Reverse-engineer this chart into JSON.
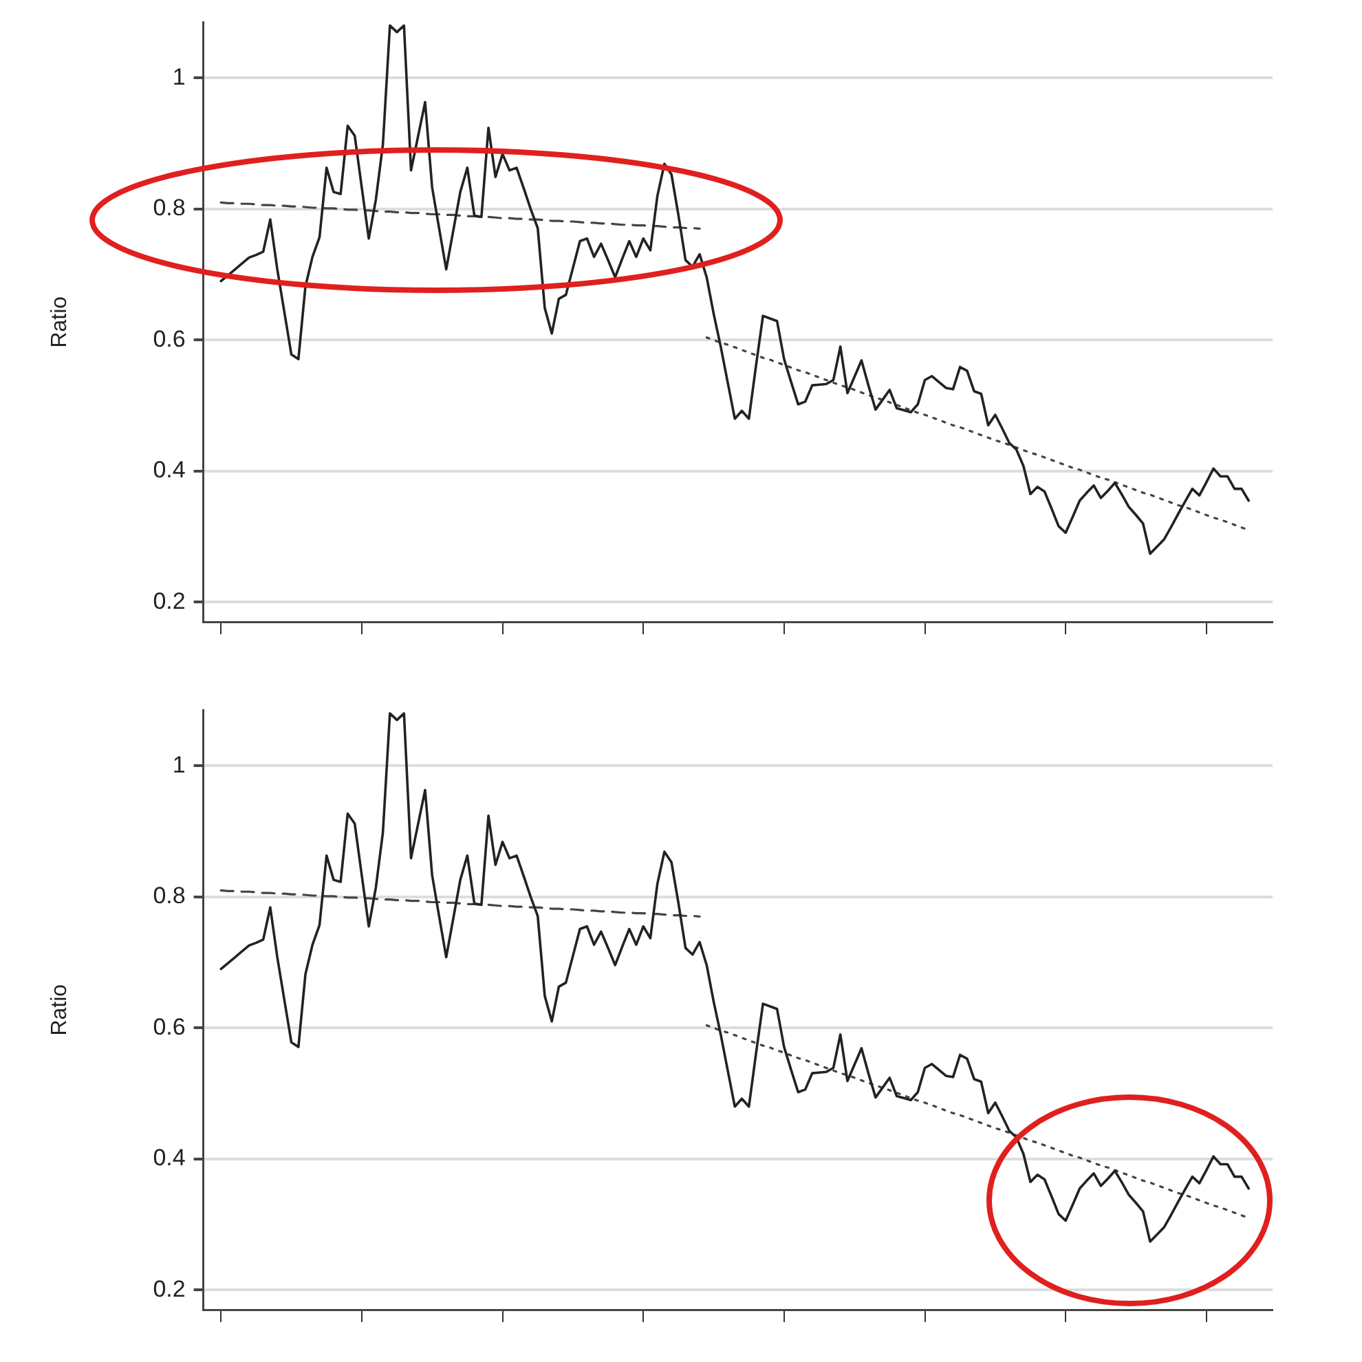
{
  "chart_data": [
    {
      "type": "line",
      "ylabel": "Ratio",
      "ylim": [
        0.17,
        1.085
      ],
      "yticks": [
        0.2,
        0.4,
        0.6,
        0.8,
        1
      ],
      "grid": "y",
      "legend": false,
      "marker": "none",
      "categories": [
        null,
        null,
        null,
        null,
        null,
        null,
        null,
        null,
        null,
        null,
        null,
        null,
        null,
        null,
        null,
        null,
        null,
        null,
        null,
        null,
        null,
        null,
        null,
        null,
        null,
        null,
        null,
        null,
        null,
        null,
        null,
        null,
        null,
        null,
        null,
        null,
        null,
        null,
        null,
        null,
        null,
        null,
        null,
        null,
        null,
        null,
        null,
        null,
        null,
        null,
        null,
        null,
        null,
        null,
        null,
        null,
        null,
        null,
        null,
        null,
        null,
        null,
        null,
        null,
        null,
        null,
        null,
        null,
        null,
        null,
        null,
        null,
        null,
        null,
        null,
        null,
        null,
        null,
        null,
        null,
        null,
        null,
        null,
        null,
        null,
        null,
        null,
        null,
        null,
        null,
        null,
        null,
        null,
        null,
        null,
        null,
        null,
        null,
        null,
        null,
        null,
        null,
        null,
        null,
        null,
        null,
        null,
        null,
        null,
        null,
        null,
        null,
        null,
        null,
        null,
        null,
        null,
        null,
        null,
        null,
        null,
        null,
        null,
        null,
        null,
        null,
        null,
        null,
        null,
        null,
        null,
        null,
        null,
        null,
        null,
        null,
        null,
        null,
        null,
        null,
        null,
        null,
        null,
        null,
        null,
        null,
        null
      ],
      "series": [
        {
          "color": "#222222",
          "line_style": "solid",
          "values": [
            0.69,
            0.699,
            0.708,
            0.717,
            0.726,
            0.73,
            0.735,
            0.784,
            0.708,
            0.643,
            0.578,
            0.571,
            0.682,
            0.727,
            0.757,
            0.863,
            0.826,
            0.823,
            0.927,
            0.912,
            0.833,
            0.755,
            0.814,
            0.898,
            1.08,
            1.07,
            1.08,
            0.859,
            0.911,
            0.963,
            0.833,
            0.77,
            0.708,
            0.767,
            0.826,
            0.863,
            0.79,
            0.788,
            0.924,
            0.849,
            0.884,
            0.859,
            0.863,
            0.832,
            0.8,
            0.771,
            0.649,
            0.61,
            0.663,
            0.669,
            0.71,
            0.751,
            0.755,
            0.727,
            0.747,
            0.722,
            0.696,
            0.724,
            0.751,
            0.727,
            0.755,
            0.737,
            0.82,
            0.869,
            0.853,
            0.79,
            0.722,
            0.712,
            0.731,
            0.696,
            0.64,
            0.59,
            0.535,
            0.48,
            0.492,
            0.48,
            0.56,
            0.637,
            0.633,
            0.629,
            0.571,
            0.536,
            0.502,
            0.506,
            0.531,
            0.532,
            0.533,
            0.539,
            0.59,
            0.519,
            0.544,
            0.569,
            0.53,
            0.494,
            0.509,
            0.524,
            0.496,
            0.493,
            0.49,
            0.502,
            0.539,
            0.545,
            0.536,
            0.527,
            0.525,
            0.559,
            0.553,
            0.522,
            0.518,
            0.47,
            0.486,
            0.465,
            0.443,
            0.433,
            0.408,
            0.365,
            0.376,
            0.369,
            0.343,
            0.316,
            0.306,
            0.33,
            0.355,
            0.367,
            0.378,
            0.359,
            0.37,
            0.382,
            0.364,
            0.345,
            0.333,
            0.32,
            0.274,
            0.285,
            0.296,
            0.315,
            0.335,
            0.354,
            0.373,
            0.363,
            0.383,
            0.404,
            0.392,
            0.392,
            0.373,
            0.373,
            0.355
          ]
        },
        {
          "color": "#444444",
          "line_style": "dashed",
          "values": [
            0.81,
            0.809,
            0.809,
            0.808,
            0.808,
            0.807,
            0.806,
            0.806,
            0.805,
            0.805,
            0.804,
            0.804,
            0.803,
            0.802,
            0.802,
            0.801,
            0.801,
            0.8,
            0.799,
            0.799,
            0.798,
            0.798,
            0.797,
            0.796,
            0.796,
            0.795,
            0.795,
            0.794,
            0.794,
            0.793,
            0.792,
            0.792,
            0.791,
            0.791,
            0.79,
            0.789,
            0.789,
            0.788,
            0.788,
            0.787,
            0.786,
            0.786,
            0.785,
            0.785,
            0.784,
            0.784,
            0.783,
            0.782,
            0.782,
            0.781,
            0.781,
            0.78,
            0.779,
            0.779,
            0.778,
            0.778,
            0.777,
            0.776,
            0.776,
            0.775,
            0.775,
            0.774,
            0.774,
            0.773,
            0.772,
            0.772,
            0.771,
            0.771,
            0.77,
            null,
            null,
            null,
            null,
            null,
            null,
            null,
            null,
            null,
            null,
            null,
            null,
            null,
            null,
            null,
            null,
            null,
            null,
            null,
            null,
            null,
            null,
            null,
            null,
            null,
            null,
            null,
            null,
            null,
            null,
            null,
            null,
            null,
            null,
            null,
            null,
            null,
            null,
            null,
            null,
            null,
            null,
            null,
            null,
            null,
            null,
            null,
            null,
            null,
            null,
            null,
            null,
            null,
            null,
            null,
            null,
            null,
            null,
            null,
            null,
            null,
            null,
            null,
            null,
            null,
            null,
            null,
            null,
            null,
            null,
            null,
            null,
            null,
            null,
            null,
            null,
            null,
            null
          ]
        },
        {
          "color": "#444444",
          "line_style": "dotted",
          "values": [
            null,
            null,
            null,
            null,
            null,
            null,
            null,
            null,
            null,
            null,
            null,
            null,
            null,
            null,
            null,
            null,
            null,
            null,
            null,
            null,
            null,
            null,
            null,
            null,
            null,
            null,
            null,
            null,
            null,
            null,
            null,
            null,
            null,
            null,
            null,
            null,
            null,
            null,
            null,
            null,
            null,
            null,
            null,
            null,
            null,
            null,
            null,
            null,
            null,
            null,
            null,
            null,
            null,
            null,
            null,
            null,
            null,
            null,
            null,
            null,
            null,
            null,
            null,
            null,
            null,
            null,
            null,
            null,
            null,
            0.604,
            0.6,
            0.596,
            0.593,
            0.589,
            0.585,
            0.581,
            0.577,
            0.573,
            0.57,
            0.566,
            0.562,
            0.558,
            0.554,
            0.551,
            0.547,
            0.543,
            0.539,
            0.535,
            0.531,
            0.528,
            0.524,
            0.52,
            0.516,
            0.512,
            0.509,
            0.505,
            0.501,
            0.497,
            0.493,
            0.489,
            0.486,
            0.482,
            0.478,
            0.474,
            0.47,
            0.467,
            0.463,
            0.459,
            0.455,
            0.451,
            0.447,
            0.444,
            0.44,
            0.436,
            0.432,
            0.428,
            0.425,
            0.421,
            0.417,
            0.413,
            0.409,
            0.405,
            0.402,
            0.398,
            0.394,
            0.39,
            0.387,
            0.383,
            0.379,
            0.375,
            0.371,
            0.367,
            0.364,
            0.36,
            0.356,
            0.352,
            0.348,
            0.345,
            0.341,
            0.337,
            0.333,
            0.329,
            0.326,
            0.322,
            0.318,
            0.314,
            0.31
          ]
        }
      ]
    },
    {
      "type": "line",
      "ylabel": "Ratio",
      "ylim": [
        0.17,
        1.085
      ],
      "yticks": [
        0.2,
        0.4,
        0.6,
        0.8,
        1
      ],
      "grid": "y",
      "legend": false,
      "marker": "none",
      "categories": [
        null,
        null,
        null,
        null,
        null,
        null,
        null,
        null,
        null,
        null,
        null,
        null,
        null,
        null,
        null,
        null,
        null,
        null,
        null,
        null,
        null,
        null,
        null,
        null,
        null,
        null,
        null,
        null,
        null,
        null,
        null,
        null,
        null,
        null,
        null,
        null,
        null,
        null,
        null,
        null,
        null,
        null,
        null,
        null,
        null,
        null,
        null,
        null,
        null,
        null,
        null,
        null,
        null,
        null,
        null,
        null,
        null,
        null,
        null,
        null,
        null,
        null,
        null,
        null,
        null,
        null,
        null,
        null,
        null,
        null,
        null,
        null,
        null,
        null,
        null,
        null,
        null,
        null,
        null,
        null,
        null,
        null,
        null,
        null,
        null,
        null,
        null,
        null,
        null,
        null,
        null,
        null,
        null,
        null,
        null,
        null,
        null,
        null,
        null,
        null,
        null,
        null,
        null,
        null,
        null,
        null,
        null,
        null,
        null,
        null,
        null,
        null,
        null,
        null,
        null,
        null,
        null,
        null,
        null,
        null,
        null,
        null,
        null,
        null,
        null,
        null,
        null,
        null,
        null,
        null,
        null,
        null,
        null,
        null,
        null,
        null,
        null,
        null,
        null,
        null,
        null,
        null,
        null,
        null,
        null,
        null,
        null
      ],
      "series": [
        {
          "color": "#222222",
          "line_style": "solid",
          "values": [
            0.69,
            0.699,
            0.708,
            0.717,
            0.726,
            0.73,
            0.735,
            0.784,
            0.708,
            0.643,
            0.578,
            0.571,
            0.682,
            0.727,
            0.757,
            0.863,
            0.826,
            0.823,
            0.927,
            0.912,
            0.833,
            0.755,
            0.814,
            0.898,
            1.08,
            1.07,
            1.08,
            0.859,
            0.911,
            0.963,
            0.833,
            0.77,
            0.708,
            0.767,
            0.826,
            0.863,
            0.79,
            0.788,
            0.924,
            0.849,
            0.884,
            0.859,
            0.863,
            0.832,
            0.8,
            0.771,
            0.649,
            0.61,
            0.663,
            0.669,
            0.71,
            0.751,
            0.755,
            0.727,
            0.747,
            0.722,
            0.696,
            0.724,
            0.751,
            0.727,
            0.755,
            0.737,
            0.82,
            0.869,
            0.853,
            0.79,
            0.722,
            0.712,
            0.731,
            0.696,
            0.64,
            0.59,
            0.535,
            0.48,
            0.492,
            0.48,
            0.56,
            0.637,
            0.633,
            0.629,
            0.571,
            0.536,
            0.502,
            0.506,
            0.531,
            0.532,
            0.533,
            0.539,
            0.59,
            0.519,
            0.544,
            0.569,
            0.53,
            0.494,
            0.509,
            0.524,
            0.496,
            0.493,
            0.49,
            0.502,
            0.539,
            0.545,
            0.536,
            0.527,
            0.525,
            0.559,
            0.553,
            0.522,
            0.518,
            0.47,
            0.486,
            0.465,
            0.443,
            0.433,
            0.408,
            0.365,
            0.376,
            0.369,
            0.343,
            0.316,
            0.306,
            0.33,
            0.355,
            0.367,
            0.378,
            0.359,
            0.37,
            0.382,
            0.364,
            0.345,
            0.333,
            0.32,
            0.274,
            0.285,
            0.296,
            0.315,
            0.335,
            0.354,
            0.373,
            0.363,
            0.383,
            0.404,
            0.392,
            0.392,
            0.373,
            0.373,
            0.355
          ]
        },
        {
          "color": "#444444",
          "line_style": "dashed",
          "values": [
            0.81,
            0.809,
            0.809,
            0.808,
            0.808,
            0.807,
            0.806,
            0.806,
            0.805,
            0.805,
            0.804,
            0.804,
            0.803,
            0.802,
            0.802,
            0.801,
            0.801,
            0.8,
            0.799,
            0.799,
            0.798,
            0.798,
            0.797,
            0.796,
            0.796,
            0.795,
            0.795,
            0.794,
            0.794,
            0.793,
            0.792,
            0.792,
            0.791,
            0.791,
            0.79,
            0.789,
            0.789,
            0.788,
            0.788,
            0.787,
            0.786,
            0.786,
            0.785,
            0.785,
            0.784,
            0.784,
            0.783,
            0.782,
            0.782,
            0.781,
            0.781,
            0.78,
            0.779,
            0.779,
            0.778,
            0.778,
            0.777,
            0.776,
            0.776,
            0.775,
            0.775,
            0.774,
            0.774,
            0.773,
            0.772,
            0.772,
            0.771,
            0.771,
            0.77,
            null,
            null,
            null,
            null,
            null,
            null,
            null,
            null,
            null,
            null,
            null,
            null,
            null,
            null,
            null,
            null,
            null,
            null,
            null,
            null,
            null,
            null,
            null,
            null,
            null,
            null,
            null,
            null,
            null,
            null,
            null,
            null,
            null,
            null,
            null,
            null,
            null,
            null,
            null,
            null,
            null,
            null,
            null,
            null,
            null,
            null,
            null,
            null,
            null,
            null,
            null,
            null,
            null,
            null,
            null,
            null,
            null,
            null,
            null,
            null,
            null,
            null,
            null,
            null,
            null,
            null,
            null,
            null,
            null,
            null,
            null,
            null,
            null,
            null,
            null,
            null,
            null,
            null
          ]
        },
        {
          "color": "#444444",
          "line_style": "dotted",
          "values": [
            null,
            null,
            null,
            null,
            null,
            null,
            null,
            null,
            null,
            null,
            null,
            null,
            null,
            null,
            null,
            null,
            null,
            null,
            null,
            null,
            null,
            null,
            null,
            null,
            null,
            null,
            null,
            null,
            null,
            null,
            null,
            null,
            null,
            null,
            null,
            null,
            null,
            null,
            null,
            null,
            null,
            null,
            null,
            null,
            null,
            null,
            null,
            null,
            null,
            null,
            null,
            null,
            null,
            null,
            null,
            null,
            null,
            null,
            null,
            null,
            null,
            null,
            null,
            null,
            null,
            null,
            null,
            null,
            null,
            0.604,
            0.6,
            0.596,
            0.593,
            0.589,
            0.585,
            0.581,
            0.577,
            0.573,
            0.57,
            0.566,
            0.562,
            0.558,
            0.554,
            0.551,
            0.547,
            0.543,
            0.539,
            0.535,
            0.531,
            0.528,
            0.524,
            0.52,
            0.516,
            0.512,
            0.509,
            0.505,
            0.501,
            0.497,
            0.493,
            0.489,
            0.486,
            0.482,
            0.478,
            0.474,
            0.47,
            0.467,
            0.463,
            0.459,
            0.455,
            0.451,
            0.447,
            0.444,
            0.44,
            0.436,
            0.432,
            0.428,
            0.425,
            0.421,
            0.417,
            0.413,
            0.409,
            0.405,
            0.402,
            0.398,
            0.394,
            0.39,
            0.387,
            0.383,
            0.379,
            0.375,
            0.371,
            0.367,
            0.364,
            0.36,
            0.356,
            0.352,
            0.348,
            0.345,
            0.341,
            0.337,
            0.333,
            0.329,
            0.326,
            0.322,
            0.318,
            0.314,
            0.31
          ]
        }
      ]
    }
  ]
}
